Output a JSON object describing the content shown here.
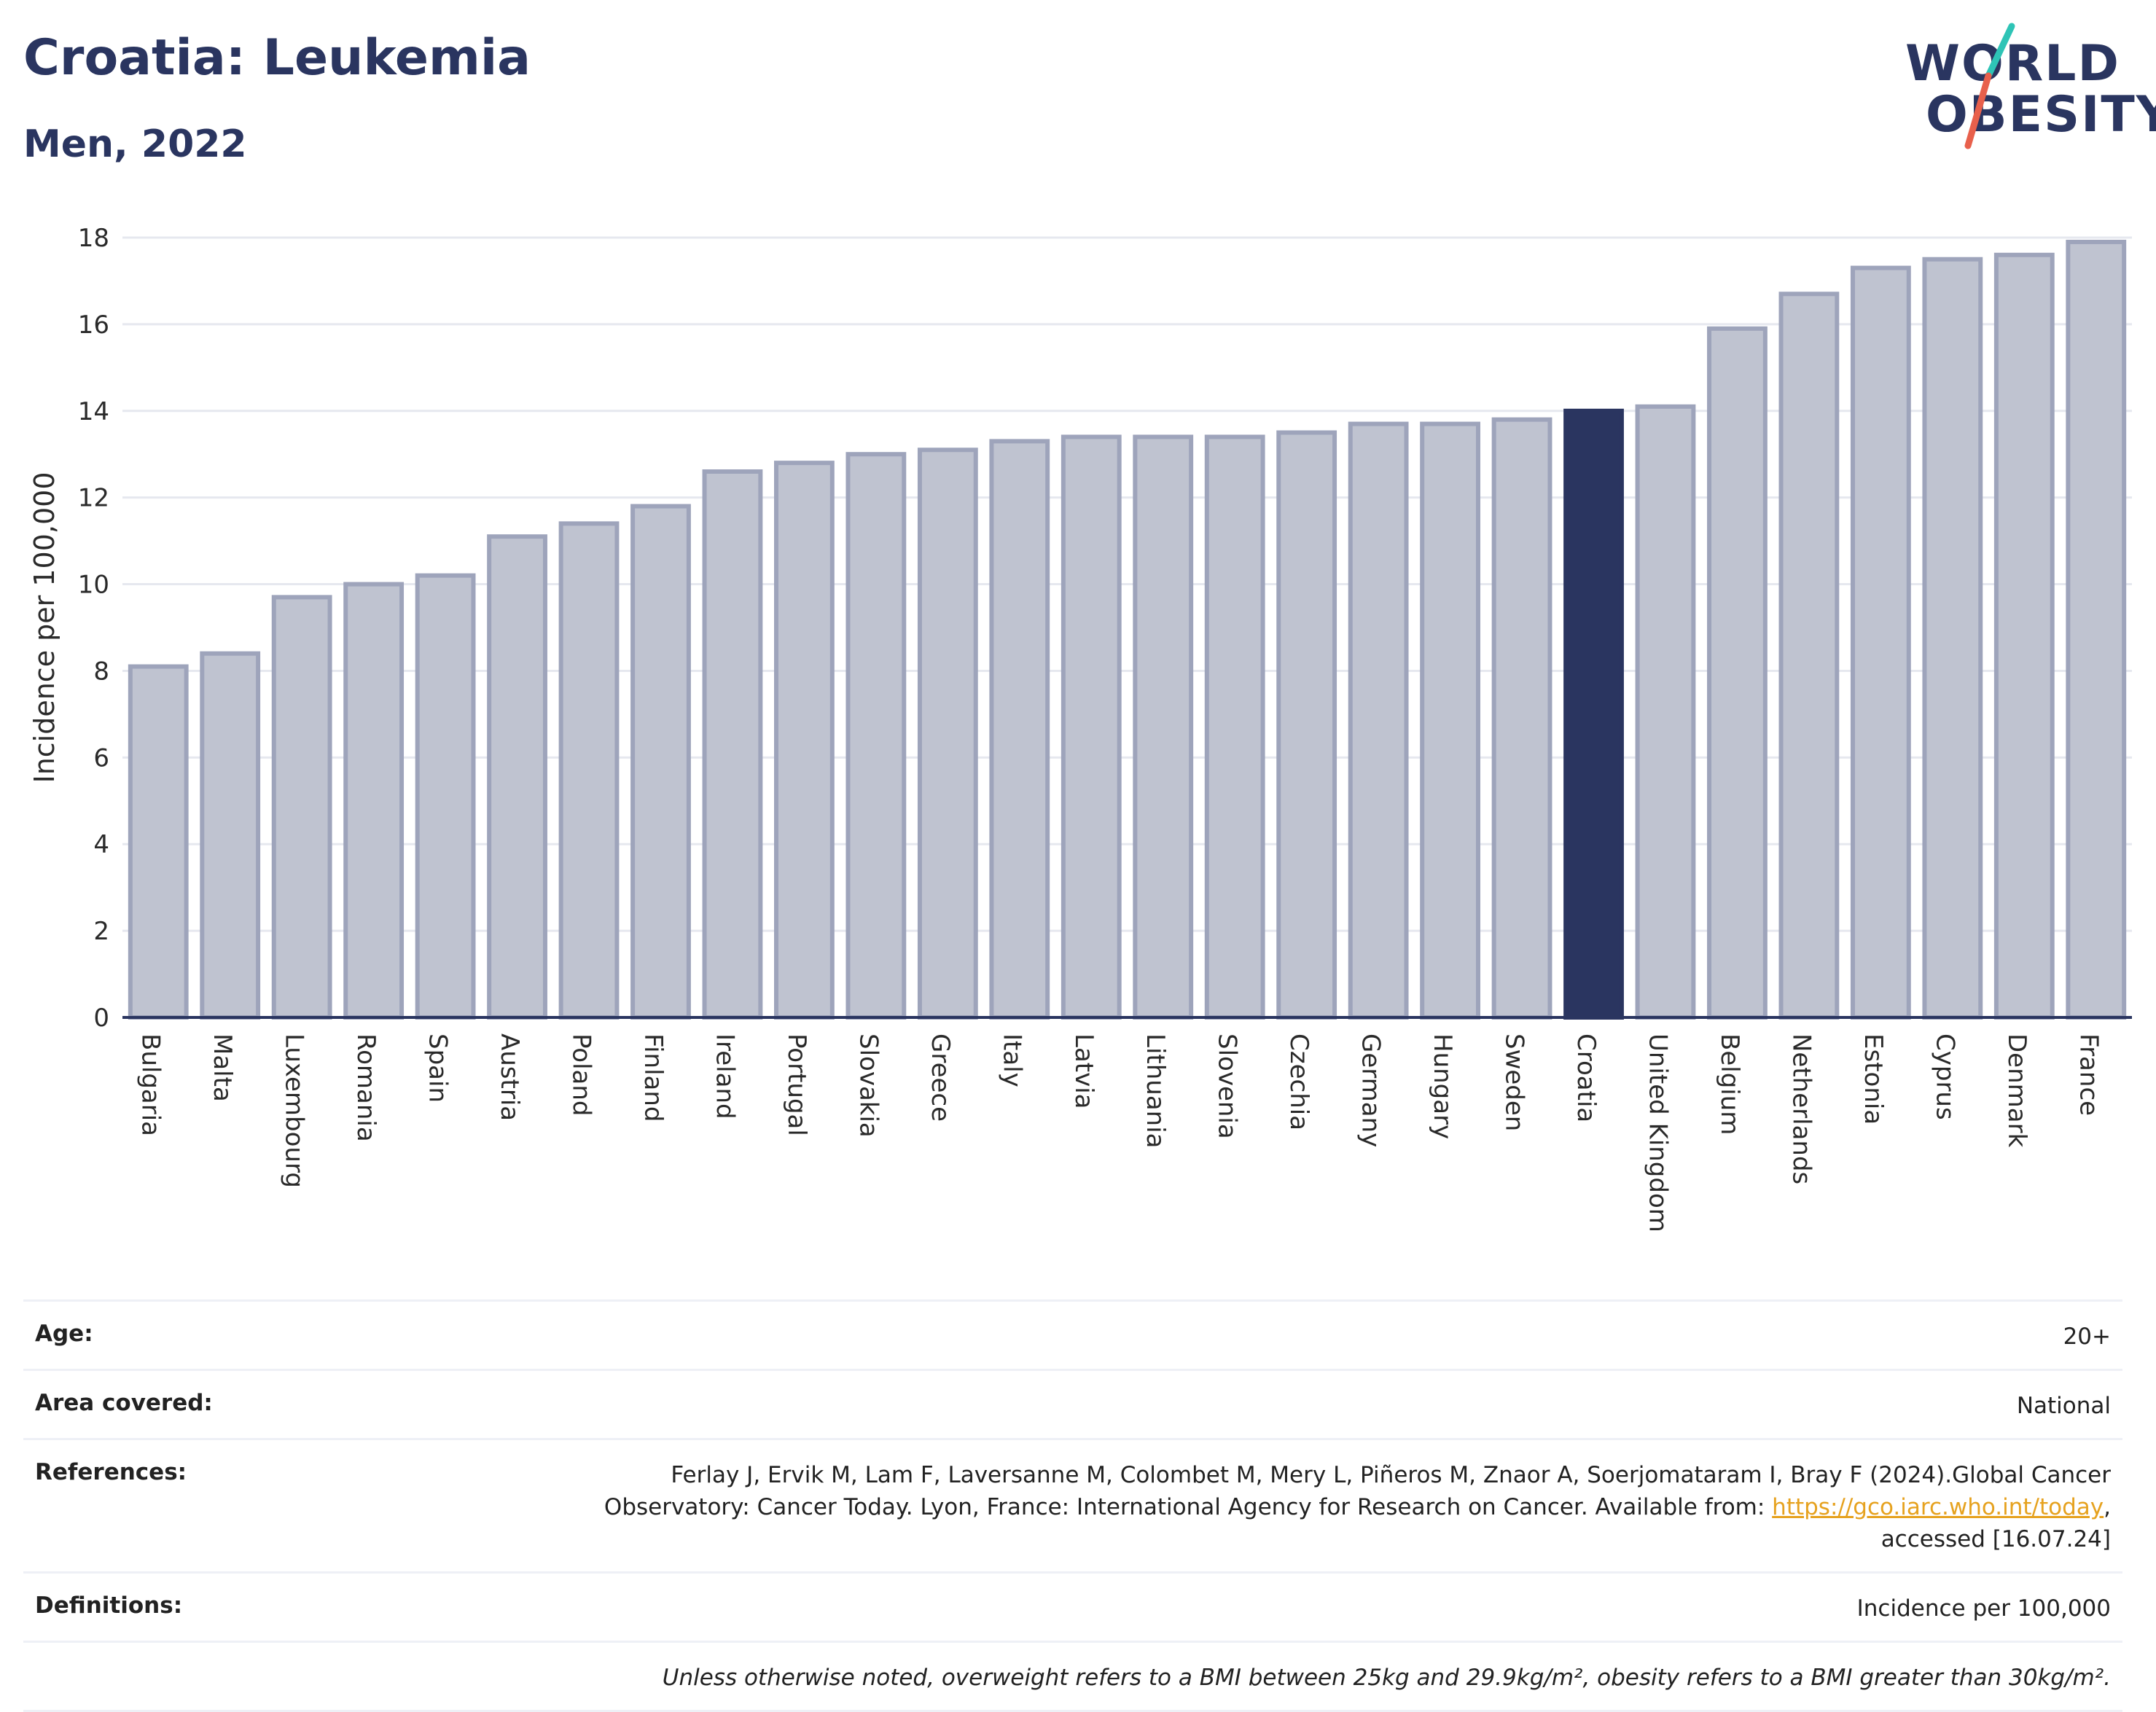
{
  "header": {
    "title": "Croatia: Leukemia",
    "subtitle": "Men, 2022"
  },
  "logo": {
    "line1": "WORLD",
    "line2": "OBESITY",
    "colors": {
      "text": "#2a3560",
      "slash_top": "#2ec4b6",
      "slash_bottom": "#e8604c"
    }
  },
  "chart_data": {
    "type": "bar",
    "title": "Croatia: Leukemia",
    "subtitle": "Men, 2022",
    "ylabel": "Incidence per 100,000",
    "xlabel": "",
    "ylim": [
      0,
      18
    ],
    "yticks": [
      0,
      2,
      4,
      6,
      8,
      10,
      12,
      14,
      16,
      18
    ],
    "grid": true,
    "highlight": "Croatia",
    "colors": {
      "bar": "#bfc3d0",
      "bar_edge": "#9ea4bb",
      "highlight": "#2a3560"
    },
    "categories": [
      "Bulgaria",
      "Malta",
      "Luxembourg",
      "Romania",
      "Spain",
      "Austria",
      "Poland",
      "Finland",
      "Ireland",
      "Portugal",
      "Slovakia",
      "Greece",
      "Italy",
      "Latvia",
      "Lithuania",
      "Slovenia",
      "Czechia",
      "Germany",
      "Hungary",
      "Sweden",
      "Croatia",
      "United Kingdom",
      "Belgium",
      "Netherlands",
      "Estonia",
      "Cyprus",
      "Denmark",
      "France"
    ],
    "values": [
      8.1,
      8.4,
      9.7,
      10.0,
      10.2,
      11.1,
      11.4,
      11.8,
      12.6,
      12.8,
      13.0,
      13.1,
      13.3,
      13.4,
      13.4,
      13.4,
      13.5,
      13.7,
      13.7,
      13.8,
      14.0,
      14.1,
      15.9,
      16.7,
      17.3,
      17.5,
      17.6,
      17.9
    ]
  },
  "info": {
    "age_label": "Age:",
    "age_value": "20+",
    "area_label": "Area covered:",
    "area_value": "National",
    "references_label": "References:",
    "references_line1": "Ferlay J, Ervik M, Lam F, Laversanne M, Colombet M, Mery L, Piñeros M, Znaor A, Soerjomataram I, Bray F (2024).Global Cancer",
    "references_line2_pre": "Observatory: Cancer Today. Lyon, France: International Agency for Research on Cancer. Available from: ",
    "references_link": "https://gco.iarc.who.int/today",
    "references_line2_post": ",",
    "references_line3": "accessed [16.07.24]",
    "definitions_label": "Definitions:",
    "definitions_value": "Incidence per 100,000",
    "note": "Unless otherwise noted, overweight refers to a BMI between 25kg and 29.9kg/m², obesity refers to a BMI greater than 30kg/m²."
  }
}
